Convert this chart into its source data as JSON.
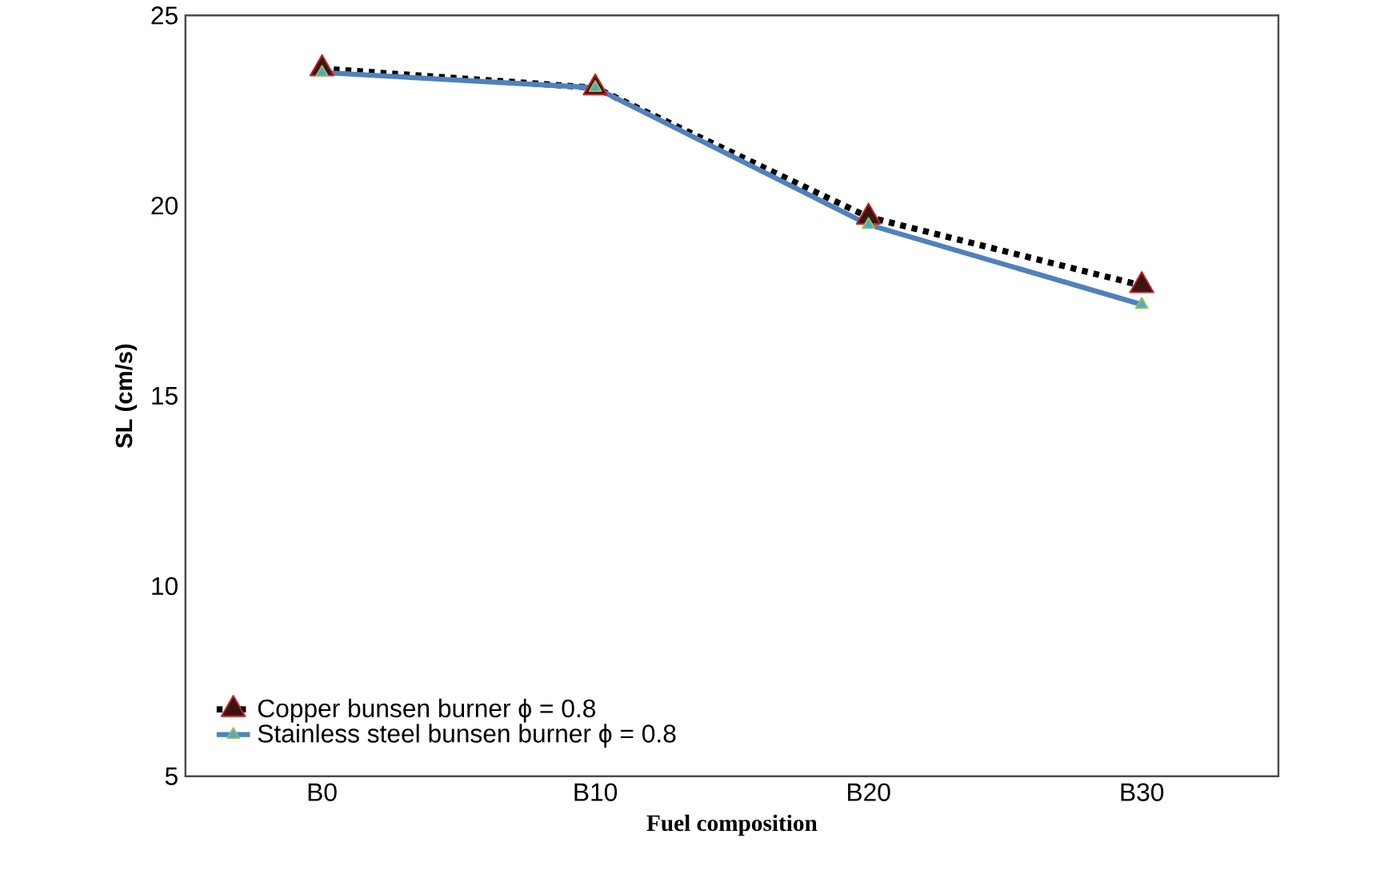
{
  "chart_data": {
    "type": "line",
    "xlabel": "Fuel composition",
    "ylabel": "SL (cm/s)",
    "categories": [
      "B0",
      "B10",
      "B20",
      "B30"
    ],
    "series": [
      {
        "name": "Copper bunsen burner ϕ = 0.8",
        "color": "#000000",
        "line_style": "dashed",
        "values": [
          23.6,
          23.1,
          19.7,
          17.9
        ]
      },
      {
        "name": "Stainless steel bunsen burner ϕ = 0.8",
        "color": "#4f81bd",
        "line_style": "solid",
        "values": [
          23.5,
          23.1,
          19.5,
          17.4
        ]
      }
    ],
    "marker": "triangle",
    "ylim": [
      5,
      25
    ],
    "yticks": [
      5,
      10,
      15,
      20,
      25
    ],
    "grid": false,
    "legend": "bottom left"
  }
}
